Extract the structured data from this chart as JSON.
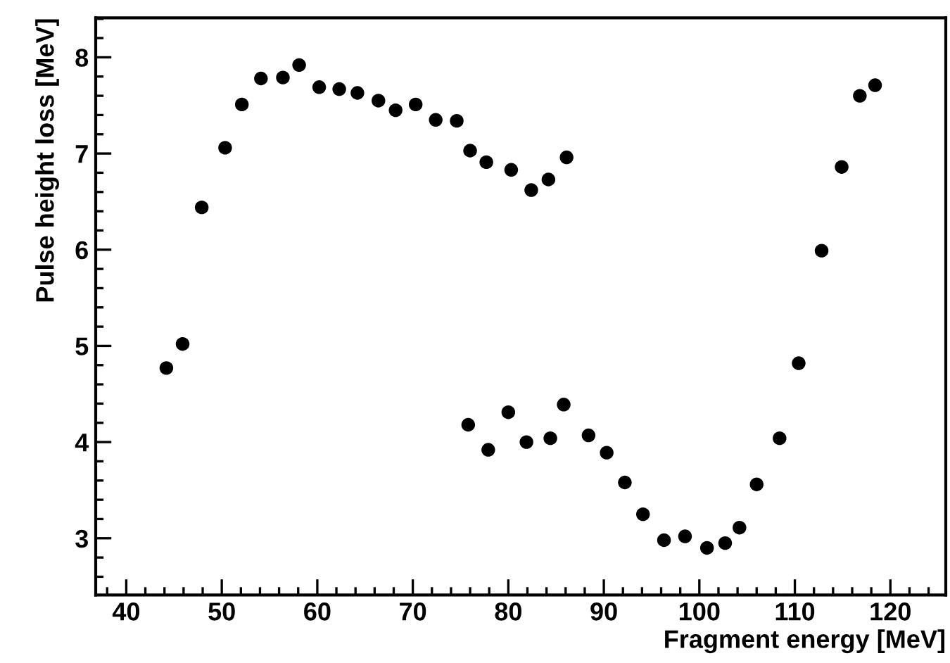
{
  "chart_data": {
    "type": "scatter",
    "xlabel": "Fragment energy [MeV]",
    "ylabel": "Pulse height loss [MeV]",
    "x": [
      44.2,
      45.9,
      47.9,
      50.35,
      52.1,
      54.1,
      56.4,
      58.1,
      60.2,
      62.3,
      64.2,
      66.4,
      68.2,
      70.3,
      72.4,
      74.6,
      76.0,
      77.7,
      80.3,
      82.4,
      84.2,
      86.1,
      75.8,
      77.9,
      80.0,
      81.9,
      84.4,
      85.8,
      88.4,
      90.3,
      92.2,
      94.1,
      96.3,
      98.5,
      100.8,
      102.7,
      104.2,
      106.0,
      108.4,
      110.4,
      112.8,
      114.9,
      116.8,
      118.4
    ],
    "values": [
      4.77,
      5.02,
      6.44,
      7.06,
      7.51,
      7.78,
      7.79,
      7.92,
      7.69,
      7.67,
      7.63,
      7.55,
      7.45,
      7.51,
      7.35,
      7.34,
      7.03,
      6.91,
      6.83,
      6.62,
      6.73,
      6.96,
      4.18,
      3.92,
      4.31,
      4.0,
      4.04,
      4.39,
      4.07,
      3.89,
      3.58,
      3.25,
      2.98,
      3.02,
      2.9,
      2.95,
      3.11,
      3.56,
      4.04,
      4.82,
      5.99,
      6.86,
      7.6,
      7.71
    ],
    "color": "#000000",
    "marker": "circle",
    "xlim": [
      36.8,
      125.8
    ],
    "xticks": [
      40,
      50,
      60,
      70,
      80,
      90,
      100,
      110,
      120
    ],
    "ylim": [
      2.41,
      8.41
    ],
    "yticks": [
      3,
      4,
      5,
      6,
      7,
      8
    ],
    "grid": false,
    "legend": false
  }
}
